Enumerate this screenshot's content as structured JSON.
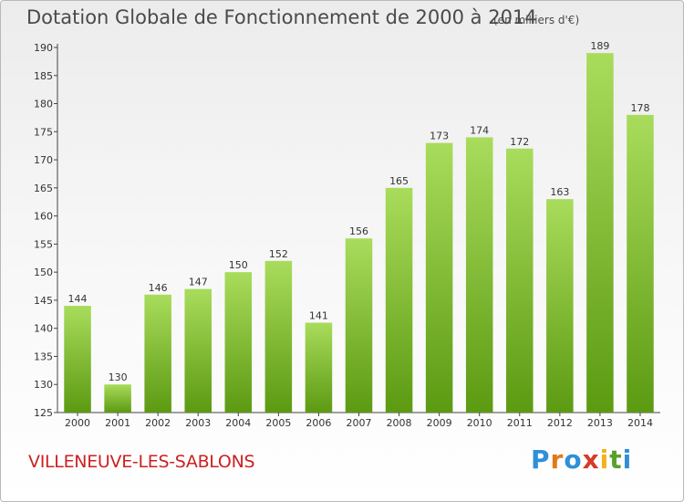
{
  "title": "Dotation Globale de Fonctionnement de 2000 à 2014",
  "subtitle": "(en milliers d'€)",
  "commune": "VILLENEUVE-LES-SABLONS",
  "logo": {
    "text": "Proxiti",
    "letter_colors": [
      "#2f8fd8",
      "#e07a1a",
      "#2f8fd8",
      "#d83a2a",
      "#f2b21c",
      "#5aa02c",
      "#2f8fd8"
    ]
  },
  "colors": {
    "bar_top": "#a9dc5c",
    "bar_bottom": "#5c9a12",
    "axis": "#444444",
    "grid_tick": "#444444",
    "text": "#333333"
  },
  "chart_data": {
    "type": "bar",
    "title": "Dotation Globale de Fonctionnement de 2000 à 2014",
    "subtitle": "(en milliers d'€)",
    "categories": [
      "2000",
      "2001",
      "2002",
      "2003",
      "2004",
      "2005",
      "2006",
      "2007",
      "2008",
      "2009",
      "2010",
      "2011",
      "2012",
      "2013",
      "2014"
    ],
    "values": [
      144,
      130,
      146,
      147,
      150,
      152,
      141,
      156,
      165,
      173,
      174,
      172,
      163,
      189,
      178
    ],
    "ylim": [
      125,
      190
    ],
    "yticks": [
      125,
      130,
      135,
      140,
      145,
      150,
      155,
      160,
      165,
      170,
      175,
      180,
      185,
      190
    ],
    "xlabel": "",
    "ylabel": "",
    "grid": false,
    "data_labels": true
  }
}
